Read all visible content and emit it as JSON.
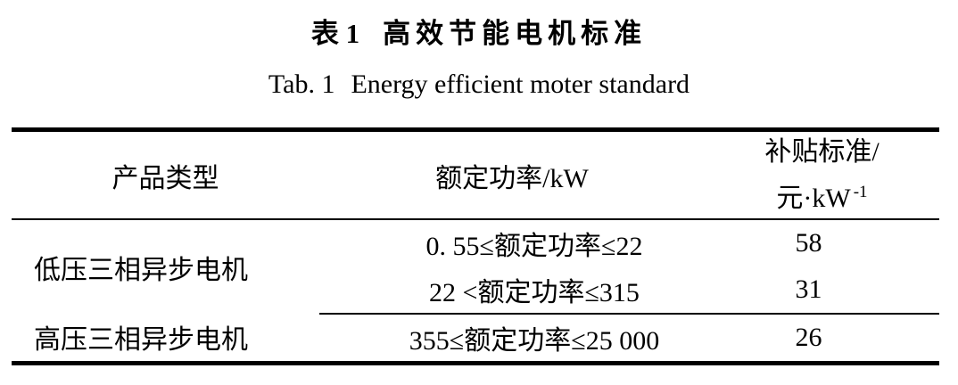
{
  "page": {
    "background": "#ffffff",
    "text_color": "#000000"
  },
  "caption": {
    "zh_label": "表 1",
    "zh_title": "高效节能电机标准",
    "en_label": "Tab. 1",
    "en_title": "Energy efficient moter standard"
  },
  "table": {
    "headers": {
      "product_type": "产品类型",
      "rated_power": "额定功率/kW",
      "subsidy_line1": "补贴标准/",
      "subsidy_unit_base": "元·kW",
      "subsidy_unit_sup": "-1"
    },
    "rows": [
      {
        "product_type": "低压三相异步电机",
        "rated_power": "0. 55≤额定功率≤22",
        "subsidy": "58"
      },
      {
        "rated_power": "22 <额定功率≤315",
        "subsidy": "31"
      },
      {
        "product_type": "高压三相异步电机",
        "rated_power": "355≤额定功率≤25 000",
        "subsidy": "26"
      }
    ]
  }
}
